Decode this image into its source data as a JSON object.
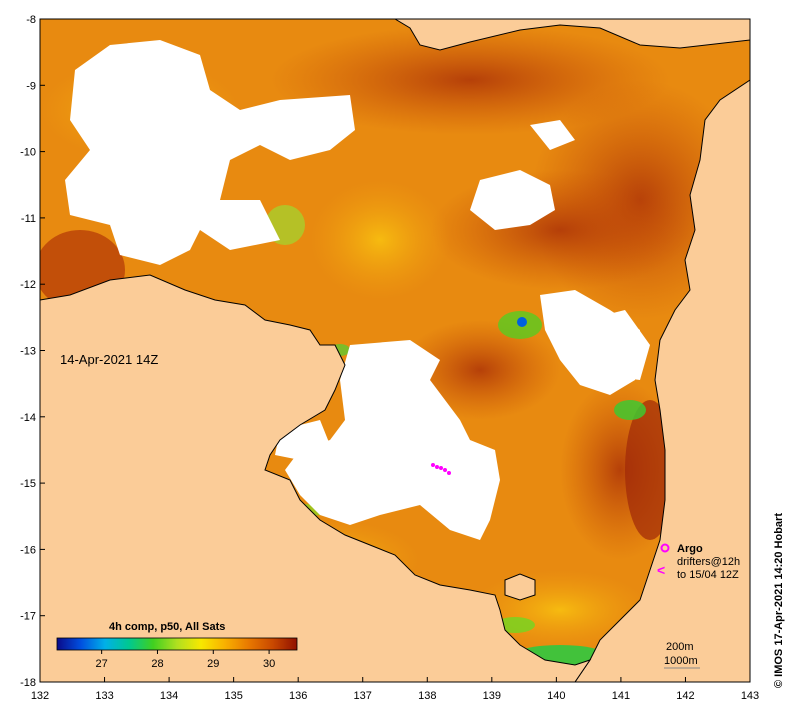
{
  "map": {
    "date_label": "14-Apr-2021 14Z",
    "credit": "© IMOS 17-Apr-2021 14:20 Hobart",
    "lon_ticks": [
      "132",
      "133",
      "134",
      "135",
      "136",
      "137",
      "138",
      "139",
      "140",
      "141",
      "142",
      "143"
    ],
    "lat_ticks": [
      "-8",
      "-9",
      "-10",
      "-11",
      "-12",
      "-13",
      "-14",
      "-15",
      "-16",
      "-17",
      "-18"
    ],
    "lon_range": [
      132,
      143
    ],
    "lat_range": [
      -18,
      -8
    ],
    "colorbar": {
      "title": "4h comp, p50, All Sats",
      "ticks": [
        "27",
        "28",
        "29",
        "30"
      ],
      "range": [
        26.2,
        30.5
      ],
      "tick_values": [
        27,
        28,
        29,
        30
      ],
      "colors": [
        "#0a0a8a",
        "#0050e0",
        "#00b0e8",
        "#00c890",
        "#40d020",
        "#b0e020",
        "#f8e800",
        "#f8b000",
        "#e87800",
        "#c84800",
        "#901000"
      ]
    },
    "legend": {
      "argo_label": "Argo",
      "drifters_label": "drifters@12h",
      "drifters_date": "to 15/04 12Z",
      "depth_200": "200m",
      "depth_1000": "1000m"
    },
    "colors": {
      "land": "#fbcc98",
      "sst_warm": "#e88a10",
      "sst_hot": "#c85008",
      "cloud": "#ffffff",
      "argo": "#ff00ff"
    }
  }
}
